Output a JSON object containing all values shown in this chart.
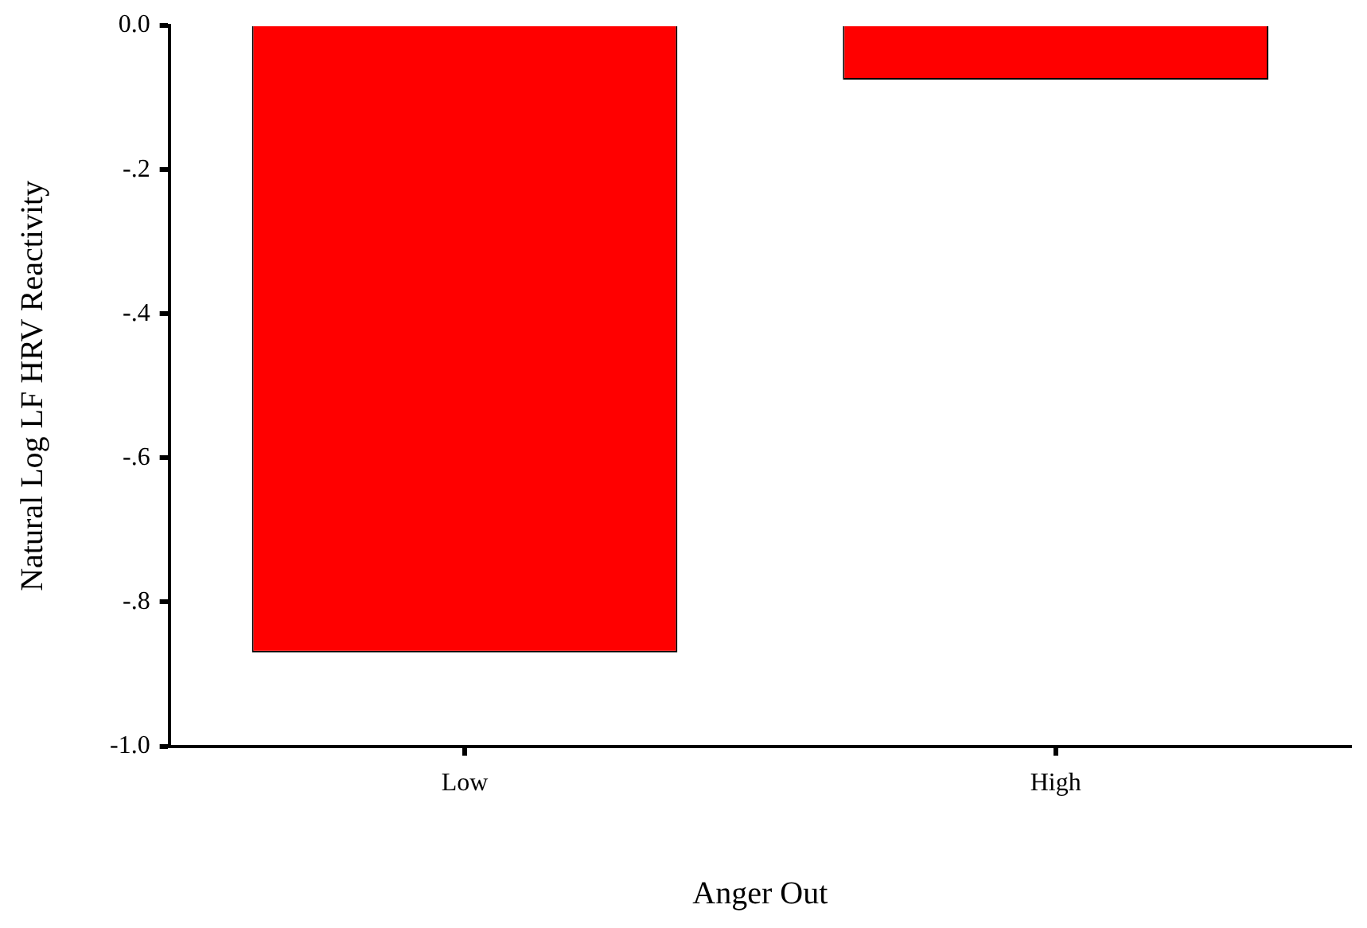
{
  "chart_data": {
    "type": "bar",
    "xlabel": "Anger Out",
    "ylabel": "Natural Log LF HRV Reactivity",
    "categories": [
      "Low",
      "High"
    ],
    "values": [
      -0.87,
      -0.075
    ],
    "color": "#ff0000",
    "ylim": [
      -1.0,
      0.0
    ],
    "yticks": [
      {
        "value": 0,
        "label": "0.0"
      },
      {
        "value": -0.2,
        "label": "-.2"
      },
      {
        "value": -0.4,
        "label": "-.4"
      },
      {
        "value": -0.6,
        "label": "-.6"
      },
      {
        "value": -0.8,
        "label": "-.8"
      },
      {
        "value": -1.0,
        "label": "-1.0"
      }
    ],
    "grid": false,
    "legend": false
  }
}
